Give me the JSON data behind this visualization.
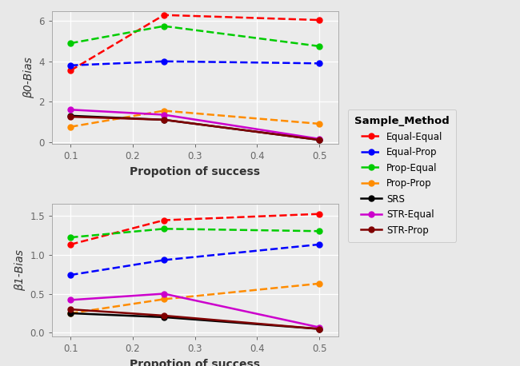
{
  "x": [
    0.1,
    0.25,
    0.5
  ],
  "beta0": {
    "Equal-Equal": [
      3.55,
      6.3,
      6.05
    ],
    "Equal-Prop": [
      3.8,
      4.0,
      3.9
    ],
    "Prop-Equal": [
      4.9,
      5.75,
      4.75
    ],
    "Prop-Prop": [
      0.75,
      1.55,
      0.9
    ],
    "SRS": [
      1.3,
      1.1,
      0.1
    ],
    "STR-Equal": [
      1.6,
      1.35,
      0.15
    ],
    "STR-Prop": [
      1.25,
      1.1,
      0.1
    ]
  },
  "beta1": {
    "Equal-Equal": [
      1.13,
      1.44,
      1.52
    ],
    "Equal-Prop": [
      0.74,
      0.93,
      1.13
    ],
    "Prop-Equal": [
      1.22,
      1.33,
      1.3
    ],
    "Prop-Prop": [
      0.25,
      0.43,
      0.63
    ],
    "SRS": [
      0.25,
      0.2,
      0.05
    ],
    "STR-Equal": [
      0.42,
      0.5,
      0.07
    ],
    "STR-Prop": [
      0.3,
      0.22,
      0.05
    ]
  },
  "colors": {
    "Equal-Equal": "#FF0000",
    "Equal-Prop": "#0000FF",
    "Prop-Equal": "#00CC00",
    "Prop-Prop": "#FF8C00",
    "SRS": "#000000",
    "STR-Equal": "#CC00CC",
    "STR-Prop": "#800000"
  },
  "dashed": [
    "Equal-Equal",
    "Equal-Prop",
    "Prop-Equal",
    "Prop-Prop"
  ],
  "solid": [
    "SRS",
    "STR-Equal",
    "STR-Prop"
  ],
  "fig_bg": "#E8E8E8",
  "panel_bg": "#EBEBEB",
  "grid_color": "#FFFFFF",
  "xlabel": "Propotion of success",
  "ylabel0": "β0-Bias",
  "ylabel1": "β1-Bias",
  "legend_title": "Sample_Method",
  "ylim0": [
    -0.1,
    6.5
  ],
  "ylim1": [
    -0.05,
    1.65
  ],
  "yticks0": [
    0,
    2,
    4,
    6
  ],
  "yticks1": [
    0.0,
    0.5,
    1.0,
    1.5
  ],
  "xticks": [
    0.1,
    0.2,
    0.3,
    0.4,
    0.5
  ],
  "xlim": [
    0.07,
    0.53
  ],
  "linewidth": 1.8,
  "markersize": 5,
  "legend_fontsize": 8.5,
  "legend_title_fontsize": 9.5,
  "axis_label_fontsize": 10,
  "tick_fontsize": 8.5
}
